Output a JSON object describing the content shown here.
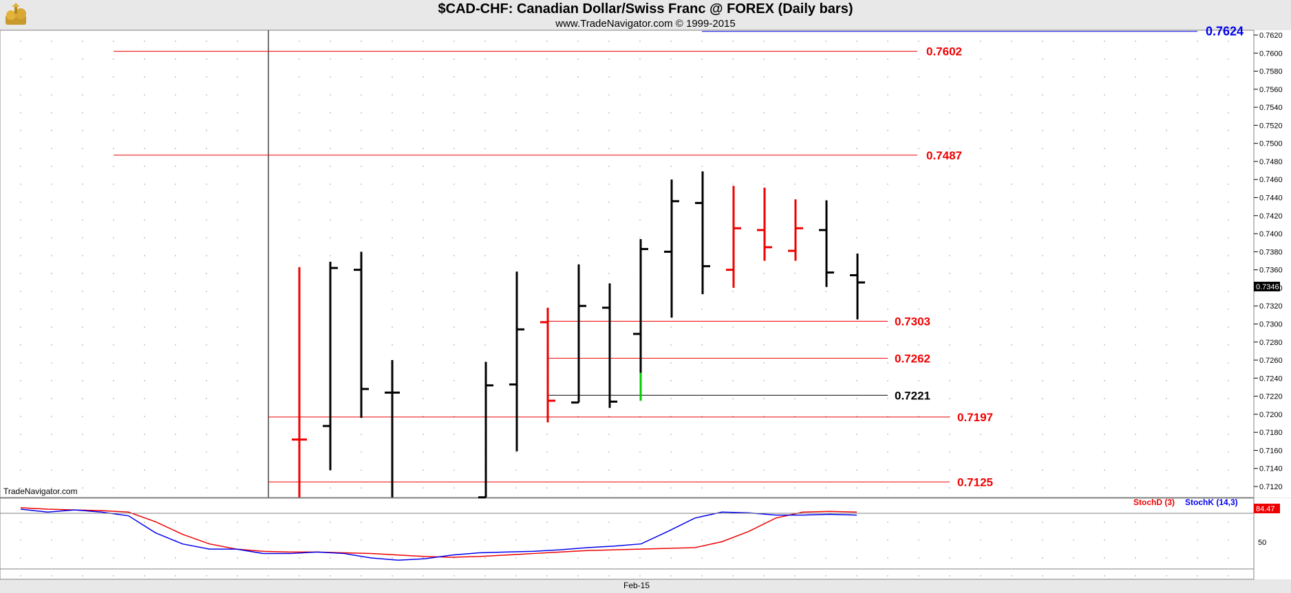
{
  "header": {
    "title": "$CAD-CHF:  Canadian Dollar/Swiss Franc @ FOREX  (Daily bars)",
    "subtitle": "www.TradeNavigator.com © 1999-2015"
  },
  "watermark": "TradeNavigator.com",
  "x_axis_label": "Feb-15",
  "price_axis": {
    "ticks": [
      "0.7620",
      "0.7600",
      "0.7580",
      "0.7560",
      "0.7540",
      "0.7520",
      "0.7500",
      "0.7480",
      "0.7460",
      "0.7440",
      "0.7420",
      "0.7400",
      "0.7380",
      "0.7360",
      "0.7340",
      "0.7320",
      "0.7300",
      "0.7280",
      "0.7260",
      "0.7240",
      "0.7220",
      "0.7200",
      "0.7180",
      "0.7160",
      "0.7140",
      "0.7120"
    ],
    "last_price": "0.7346",
    "ylim": [
      0.7108,
      0.7635
    ]
  },
  "lower_panel": {
    "legend_d": "StochD (3)",
    "legend_k": "StochK (14,3)",
    "last_value": "84.47",
    "tick_50": "50"
  },
  "colors": {
    "up_bar": "#000000",
    "down_bar": "#ee0000",
    "level_red": "#ee0000",
    "level_blue": "#0000ee",
    "level_black": "#000000",
    "highlight_green": "#00cc00",
    "stoch_d": "#ee0000",
    "stoch_k": "#0000ee"
  },
  "chart_data": {
    "type": "ohlc",
    "bars": [
      {
        "o": 0.7172,
        "h": 0.7363,
        "l": 0.7108,
        "c": 0.7172,
        "color": "red"
      },
      {
        "o": 0.7187,
        "h": 0.7369,
        "l": 0.7138,
        "c": 0.7362,
        "color": "black"
      },
      {
        "o": 0.736,
        "h": 0.738,
        "l": 0.7196,
        "c": 0.7228,
        "color": "black"
      },
      {
        "o": 0.7224,
        "h": 0.726,
        "l": 0.7108,
        "c": 0.7224,
        "color": "black"
      },
      {
        "o": null,
        "h": null,
        "l": null,
        "c": null,
        "color": "black"
      },
      {
        "o": null,
        "h": null,
        "l": null,
        "c": null,
        "color": "black"
      },
      {
        "o": 0.7108,
        "h": 0.7258,
        "l": 0.7108,
        "c": 0.7232,
        "color": "black"
      },
      {
        "o": 0.7233,
        "h": 0.7358,
        "l": 0.7159,
        "c": 0.7294,
        "color": "black"
      },
      {
        "o": 0.7302,
        "h": 0.7318,
        "l": 0.7191,
        "c": 0.7215,
        "color": "red"
      },
      {
        "o": 0.7213,
        "h": 0.7366,
        "l": 0.7213,
        "c": 0.732,
        "color": "black"
      },
      {
        "o": 0.7318,
        "h": 0.7345,
        "l": 0.7207,
        "c": 0.7214,
        "color": "black"
      },
      {
        "o": 0.7289,
        "h": 0.7394,
        "l": 0.7215,
        "c": 0.7383,
        "color": "black"
      },
      {
        "o": 0.738,
        "h": 0.746,
        "l": 0.7307,
        "c": 0.7436,
        "color": "black"
      },
      {
        "o": 0.7434,
        "h": 0.7469,
        "l": 0.7333,
        "c": 0.7364,
        "color": "black"
      },
      {
        "o": 0.736,
        "h": 0.7453,
        "l": 0.734,
        "c": 0.7406,
        "color": "red"
      },
      {
        "o": 0.7404,
        "h": 0.7451,
        "l": 0.737,
        "c": 0.7385,
        "color": "red"
      },
      {
        "o": 0.7381,
        "h": 0.7438,
        "l": 0.737,
        "c": 0.7406,
        "color": "red"
      },
      {
        "o": 0.7404,
        "h": 0.7437,
        "l": 0.7341,
        "c": 0.7357,
        "color": "black"
      },
      {
        "o": 0.7354,
        "h": 0.7378,
        "l": 0.7305,
        "c": 0.7346,
        "color": "black"
      }
    ],
    "levels": [
      {
        "value": 0.7624,
        "label": "0.7624",
        "color": "blue"
      },
      {
        "value": 0.7602,
        "label": "0.7602",
        "color": "red"
      },
      {
        "value": 0.7487,
        "label": "0.7487",
        "color": "red"
      },
      {
        "value": 0.7303,
        "label": "0.7303",
        "color": "red"
      },
      {
        "value": 0.7262,
        "label": "0.7262",
        "color": "red"
      },
      {
        "value": 0.7221,
        "label": "0.7221",
        "color": "black"
      },
      {
        "value": 0.7197,
        "label": "0.7197",
        "color": "red"
      },
      {
        "value": 0.7125,
        "label": "0.7125",
        "color": "red"
      }
    ],
    "stochastic": {
      "ylim": [
        0,
        105
      ],
      "stoch_d": [
        94,
        92,
        91,
        90,
        88,
        75,
        58,
        45,
        38,
        35,
        34,
        34,
        33,
        32,
        30,
        28,
        27,
        28,
        30,
        32,
        34,
        36,
        37,
        38,
        39,
        40,
        48,
        62,
        80,
        88,
        89,
        88
      ],
      "stoch_k": [
        92,
        88,
        91,
        88,
        83,
        60,
        45,
        38,
        38,
        32,
        32,
        34,
        32,
        26,
        23,
        25,
        30,
        33,
        34,
        35,
        37,
        40,
        42,
        45,
        62,
        80,
        88,
        87,
        84,
        84,
        85,
        84
      ]
    }
  }
}
